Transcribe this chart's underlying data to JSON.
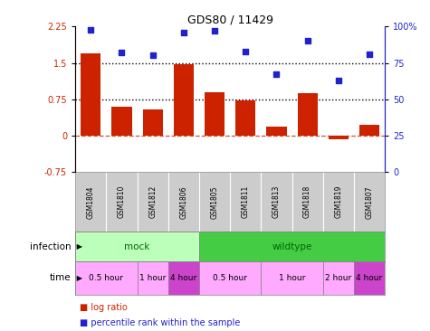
{
  "title": "GDS80 / 11429",
  "samples": [
    "GSM1804",
    "GSM1810",
    "GSM1812",
    "GSM1806",
    "GSM1805",
    "GSM1811",
    "GSM1813",
    "GSM1818",
    "GSM1819",
    "GSM1807"
  ],
  "log_ratio": [
    1.7,
    0.6,
    0.55,
    1.48,
    0.9,
    0.73,
    0.18,
    0.88,
    -0.08,
    0.22
  ],
  "percentile": [
    98,
    82,
    80,
    96,
    97,
    83,
    67,
    90,
    63,
    81
  ],
  "ylim_left": [
    -0.75,
    2.25
  ],
  "ylim_right": [
    0,
    100
  ],
  "yticks_left": [
    -0.75,
    0,
    0.75,
    1.5,
    2.25
  ],
  "yticks_right": [
    0,
    25,
    50,
    75,
    100
  ],
  "hlines_dotted": [
    1.5,
    0.75
  ],
  "hline_dashed": 0.0,
  "bar_color": "#cc2200",
  "dot_color": "#2222cc",
  "infection_groups": [
    {
      "label": "mock",
      "start": 0,
      "end": 4,
      "color": "#bbffbb"
    },
    {
      "label": "wildtype",
      "start": 4,
      "end": 10,
      "color": "#44cc44"
    }
  ],
  "time_groups": [
    {
      "label": "0.5 hour",
      "start": 0,
      "end": 2,
      "color": "#ffaaff"
    },
    {
      "label": "1 hour",
      "start": 2,
      "end": 3,
      "color": "#ffaaff"
    },
    {
      "label": "4 hour",
      "start": 3,
      "end": 4,
      "color": "#cc44cc"
    },
    {
      "label": "0.5 hour",
      "start": 4,
      "end": 6,
      "color": "#ffaaff"
    },
    {
      "label": "1 hour",
      "start": 6,
      "end": 8,
      "color": "#ffaaff"
    },
    {
      "label": "2 hour",
      "start": 8,
      "end": 9,
      "color": "#ffaaff"
    },
    {
      "label": "4 hour",
      "start": 9,
      "end": 10,
      "color": "#cc44cc"
    }
  ],
  "legend_items": [
    {
      "label": "log ratio",
      "color": "#cc2200"
    },
    {
      "label": "percentile rank within the sample",
      "color": "#2222cc"
    }
  ],
  "sample_bg_color": "#cccccc",
  "left_label_color": "#000000",
  "infection_text_color": "#006600",
  "time_text_color": "#000000"
}
